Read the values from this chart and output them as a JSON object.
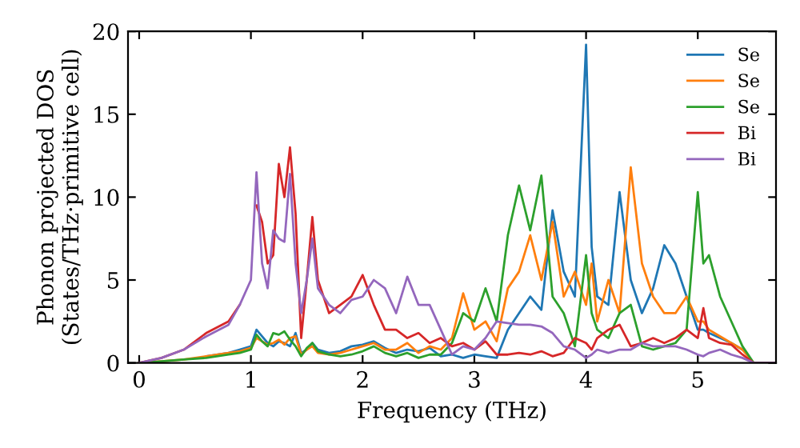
{
  "chart_data": {
    "type": "line",
    "xlabel": "Frequency (THz)",
    "ylabel": "Phonon projected DOS\n(States/THz·primitive cell)",
    "x": [
      0,
      0.2,
      0.4,
      0.6,
      0.8,
      0.9,
      1.0,
      1.05,
      1.1,
      1.15,
      1.2,
      1.25,
      1.3,
      1.35,
      1.4,
      1.45,
      1.5,
      1.55,
      1.6,
      1.7,
      1.8,
      1.9,
      2.0,
      2.1,
      2.2,
      2.3,
      2.4,
      2.5,
      2.6,
      2.7,
      2.8,
      2.9,
      3.0,
      3.1,
      3.2,
      3.3,
      3.4,
      3.5,
      3.6,
      3.7,
      3.8,
      3.9,
      4.0,
      4.05,
      4.1,
      4.2,
      4.3,
      4.4,
      4.5,
      4.6,
      4.7,
      4.8,
      4.9,
      5.0,
      5.05,
      5.1,
      5.2,
      5.3,
      5.4,
      5.5,
      5.7
    ],
    "xlim": [
      -0.1,
      5.7
    ],
    "xticks": [
      0,
      1,
      2,
      3,
      4,
      5
    ],
    "ylim": [
      0,
      20
    ],
    "yticks": [
      0,
      5,
      10,
      15,
      20
    ],
    "grid": false,
    "legend": "top right",
    "line_style": "solid",
    "marker": "none",
    "series": [
      {
        "name": "Se",
        "color": "#1f77b4",
        "values": [
          null,
          null,
          null,
          0.4,
          0.6,
          0.8,
          1.0,
          2.0,
          1.6,
          1.2,
          1.0,
          1.3,
          1.2,
          1.0,
          1.8,
          0.6,
          0.8,
          1.2,
          0.8,
          0.6,
          0.7,
          1.0,
          1.1,
          1.3,
          0.9,
          0.6,
          0.8,
          0.7,
          0.9,
          0.4,
          0.5,
          0.3,
          0.5,
          0.4,
          0.3,
          2.0,
          3.0,
          4.0,
          3.2,
          9.2,
          5.5,
          4.0,
          19.2,
          7.0,
          4.0,
          3.5,
          10.3,
          5.0,
          3.0,
          4.5,
          7.1,
          6.0,
          4.0,
          2.0,
          2.0,
          1.8,
          1.5,
          1.2,
          0.8,
          null,
          null
        ]
      },
      {
        "name": "Se",
        "color": "#ff7f0e",
        "values": [
          0,
          0.1,
          0.2,
          0.4,
          0.6,
          0.7,
          0.9,
          1.5,
          1.3,
          1.1,
          1.2,
          1.4,
          1.1,
          1.5,
          1.6,
          0.5,
          0.8,
          1.0,
          0.6,
          0.5,
          0.6,
          0.8,
          1.0,
          1.2,
          0.8,
          0.8,
          1.2,
          0.6,
          1.0,
          0.8,
          1.5,
          4.2,
          2.0,
          2.5,
          1.3,
          4.5,
          5.5,
          7.7,
          5.0,
          8.5,
          4.0,
          5.5,
          3.5,
          6.0,
          2.5,
          5.0,
          3.0,
          11.8,
          6.0,
          4.0,
          3.0,
          3.0,
          4.0,
          2.5,
          2.5,
          2.0,
          1.6,
          1.2,
          0.8,
          0,
          0
        ]
      },
      {
        "name": "Se",
        "color": "#2ca02c",
        "values": [
          0,
          0.1,
          0.2,
          0.3,
          0.5,
          0.6,
          0.8,
          1.7,
          1.3,
          1.0,
          1.8,
          1.7,
          1.9,
          1.4,
          1.0,
          0.4,
          0.9,
          1.2,
          0.7,
          0.5,
          0.4,
          0.5,
          0.7,
          1.0,
          0.6,
          0.4,
          0.6,
          0.3,
          0.5,
          0.5,
          1.2,
          3.0,
          2.5,
          4.5,
          2.5,
          7.7,
          10.7,
          8.0,
          11.3,
          4.0,
          3.0,
          1.0,
          6.5,
          3.0,
          2.0,
          1.5,
          3.0,
          3.5,
          1.0,
          0.8,
          1.0,
          1.2,
          2.0,
          10.3,
          6.0,
          6.5,
          4.0,
          2.5,
          1.0,
          0,
          0
        ]
      },
      {
        "name": "Bi",
        "color": "#d62728",
        "values": [
          0,
          0.3,
          0.8,
          1.8,
          2.5,
          3.5,
          null,
          9.5,
          8.5,
          6.0,
          6.5,
          12.0,
          10.0,
          13.0,
          9.0,
          1.5,
          5.0,
          8.8,
          5.0,
          3.0,
          3.5,
          4.0,
          5.3,
          3.5,
          2.0,
          2.0,
          1.5,
          1.8,
          1.2,
          1.5,
          1.0,
          1.2,
          0.8,
          1.3,
          0.5,
          0.5,
          0.6,
          0.5,
          0.7,
          0.4,
          0.6,
          1.5,
          1.2,
          0.8,
          1.5,
          2.0,
          2.3,
          1.0,
          1.2,
          1.5,
          1.2,
          1.5,
          2.0,
          1.5,
          3.3,
          1.5,
          1.2,
          1.1,
          0.5,
          0,
          0
        ]
      },
      {
        "name": "Bi",
        "color": "#9467bd",
        "values": [
          0,
          0.3,
          0.8,
          1.6,
          2.3,
          3.5,
          5.0,
          11.5,
          6.0,
          4.5,
          8.0,
          7.5,
          7.3,
          11.4,
          6.0,
          3.0,
          5.0,
          7.5,
          4.5,
          3.5,
          3.0,
          3.8,
          4.0,
          5.0,
          4.5,
          3.0,
          5.2,
          3.5,
          3.5,
          2.0,
          0.5,
          1.0,
          0.8,
          1.5,
          2.5,
          2.4,
          2.3,
          2.3,
          2.2,
          1.8,
          1.0,
          0.8,
          0.3,
          0.5,
          0.8,
          0.6,
          0.8,
          0.8,
          1.2,
          1.0,
          1.0,
          1.0,
          0.8,
          0.5,
          0.4,
          0.6,
          0.8,
          0.5,
          0.3,
          0,
          0
        ]
      }
    ]
  }
}
